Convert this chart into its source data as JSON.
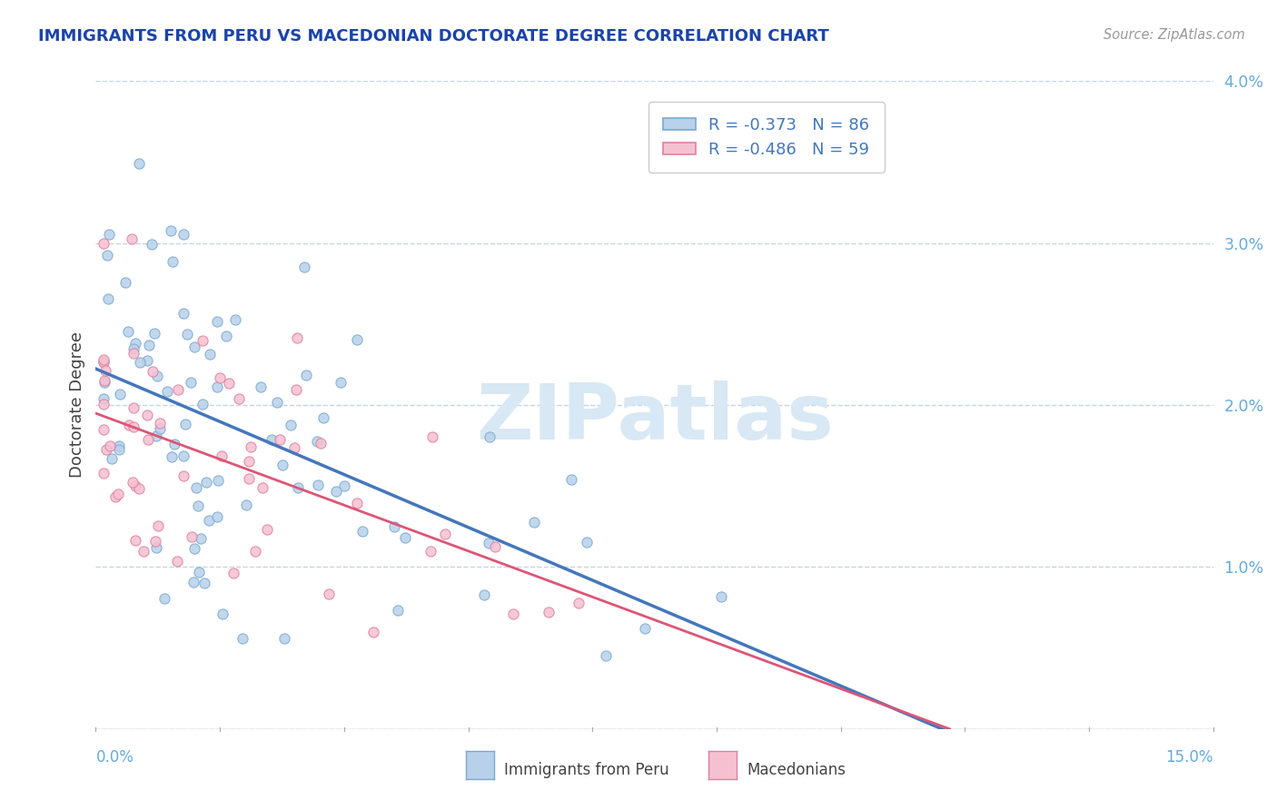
{
  "title": "IMMIGRANTS FROM PERU VS MACEDONIAN DOCTORATE DEGREE CORRELATION CHART",
  "source": "Source: ZipAtlas.com",
  "ylabel": "Doctorate Degree",
  "xmin": 0.0,
  "xmax": 0.15,
  "ymin": 0.0,
  "ymax": 0.04,
  "ytick_vals": [
    0.0,
    0.01,
    0.02,
    0.03,
    0.04
  ],
  "ytick_labels": [
    "",
    "1.0%",
    "2.0%",
    "3.0%",
    "4.0%"
  ],
  "series1_label": "Immigrants from Peru",
  "series1_R": -0.373,
  "series1_N": 86,
  "series1_color": "#b8d0ea",
  "series1_edge_color": "#7aaace",
  "series1_line_color": "#4477bb",
  "series2_label": "Macedonians",
  "series2_R": -0.486,
  "series2_N": 59,
  "series2_color": "#f5c0d0",
  "series2_edge_color": "#e080a0",
  "series2_line_color": "#dd5577",
  "bg_color": "#ffffff",
  "grid_color": "#c5d5e5",
  "title_color": "#1a44aa",
  "source_color": "#999999",
  "axis_label_color": "#444444",
  "right_tick_color": "#66aadd",
  "watermark_color": "#d8e8f4",
  "legend_text_color": "#4477bb"
}
